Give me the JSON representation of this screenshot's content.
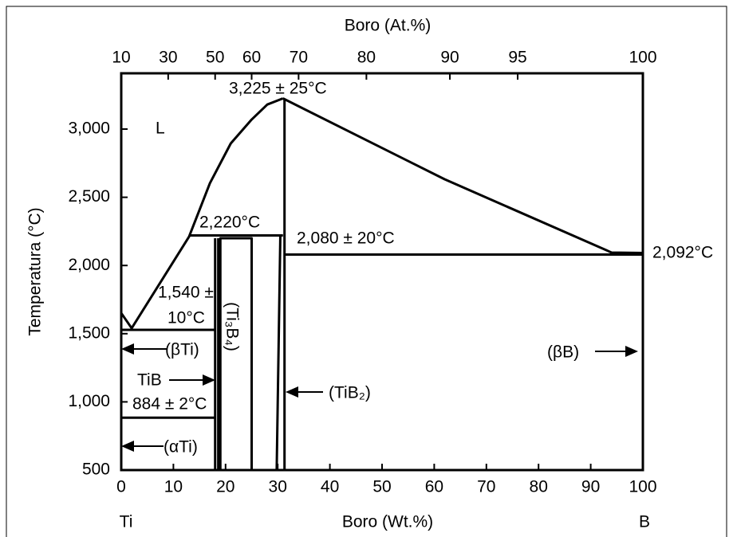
{
  "chart_data": {
    "type": "phase-diagram",
    "title": "Boro (At.%)",
    "x_label": "Boro (Wt.%)",
    "y_label": "Temperatura (°C)",
    "xlim": [
      0,
      100
    ],
    "ylim": [
      500,
      3409
    ],
    "xticks": [
      0,
      10,
      20,
      30,
      40,
      50,
      60,
      70,
      80,
      90,
      100
    ],
    "yticks": [
      500,
      {
        "value": 1000,
        "label": "1,000"
      },
      {
        "value": 1500,
        "label": "1,500"
      },
      {
        "value": 2000,
        "label": "2,000"
      },
      {
        "value": 2500,
        "label": "2,500"
      },
      {
        "value": 3000,
        "label": "3,000"
      }
    ],
    "x2ticks": [
      {
        "value": 0,
        "label": "10"
      },
      {
        "value": 9,
        "label": "30"
      },
      {
        "value": 18,
        "label": "50"
      },
      {
        "value": 25,
        "label": "60"
      },
      {
        "value": 34,
        "label": "70"
      },
      {
        "value": 47,
        "label": "80"
      },
      {
        "value": 63,
        "label": "90"
      },
      {
        "value": 76,
        "label": "95"
      },
      {
        "value": 100,
        "label": "100"
      }
    ],
    "boundaries": [
      {
        "x": [
          0,
          2,
          13,
          17,
          21,
          25,
          28,
          31
        ],
        "y": [
          1651,
          1540,
          2211,
          2603,
          2895,
          3070,
          3180,
          3225
        ]
      },
      {
        "x": [
          31,
          62,
          94,
          100
        ],
        "y": [
          3225,
          2632,
          2095,
          2092
        ]
      },
      {
        "x": [
          13,
          31
        ],
        "y": [
          2220,
          2220
        ]
      },
      {
        "x": [
          31.3,
          100
        ],
        "y": [
          2080,
          2080
        ]
      },
      {
        "x": [
          0,
          18
        ],
        "y": [
          1528,
          1528
        ]
      },
      {
        "x": [
          0,
          18
        ],
        "y": [
          884,
          884
        ]
      },
      {
        "x": [
          18,
          18
        ],
        "y": [
          500,
          2200
        ]
      },
      {
        "x": [
          18.6,
          18.6
        ],
        "y": [
          500,
          2200
        ]
      },
      {
        "x": [
          19,
          25,
          25,
          19,
          19
        ],
        "y": [
          500,
          500,
          2200,
          2200,
          500
        ]
      },
      {
        "x": [
          29.8,
          30.5
        ],
        "y": [
          500,
          2220
        ]
      },
      {
        "x": [
          31.3,
          31.3
        ],
        "y": [
          500,
          3225
        ]
      }
    ],
    "annotations": [
      "3,225 ± 25°C",
      "L",
      "2,220°C",
      "2,080 ± 20°C",
      "2,092°C",
      "1,540 ±",
      "10°C",
      "(βTi)",
      "TiB",
      "(Ti₃B₄)",
      "884 ± 2°C",
      "(αTi)",
      "(TiB₂)",
      "(βB)",
      "Ti",
      "B"
    ]
  }
}
